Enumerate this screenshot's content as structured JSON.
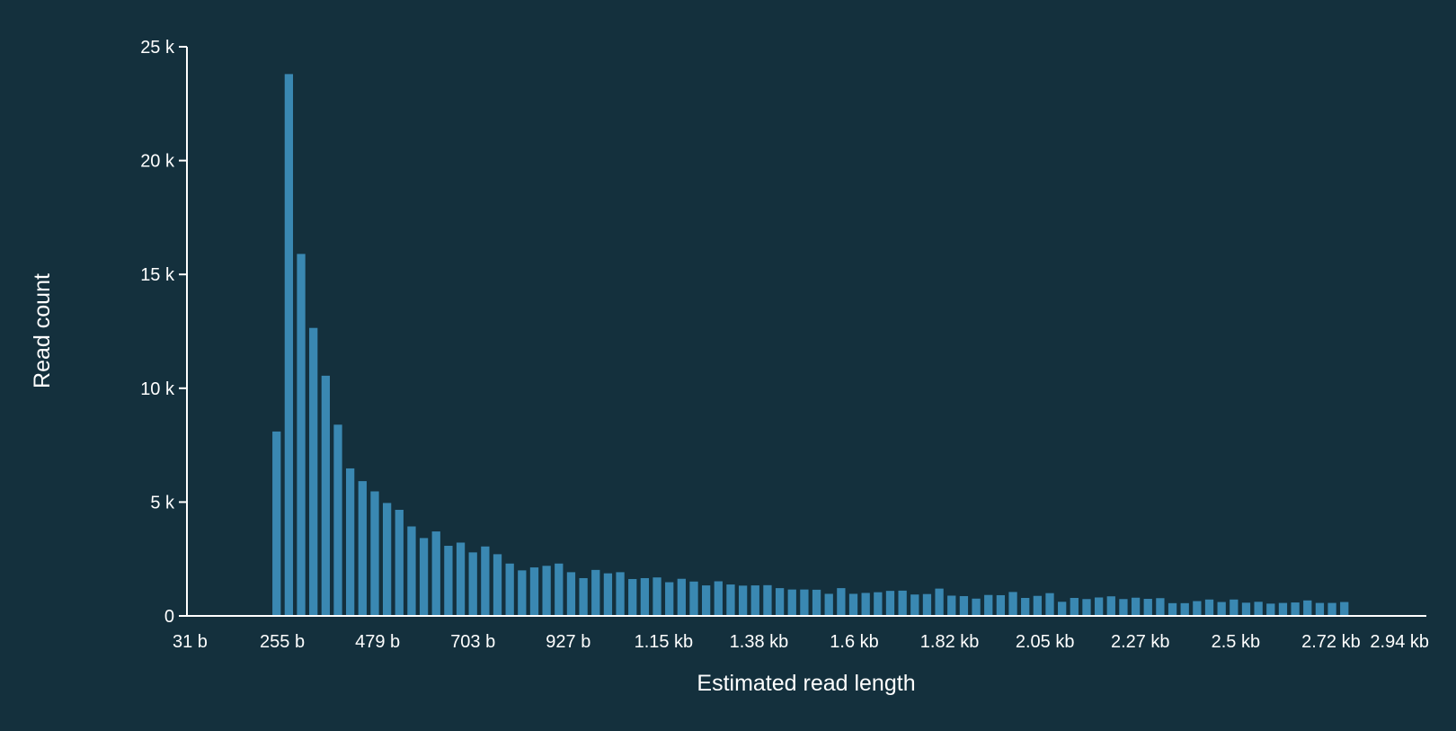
{
  "chart_data": {
    "type": "bar",
    "xlabel": "Estimated read length",
    "ylabel": "Read count",
    "x_tick_labels": [
      "31 b",
      "255 b",
      "479 b",
      "703 b",
      "927 b",
      "1.15 kb",
      "1.38 kb",
      "1.6 kb",
      "1.82 kb",
      "2.05 kb",
      "2.27 kb",
      "2.5 kb",
      "2.72 kb",
      "2.94 kb"
    ],
    "y_tick_labels": [
      "0",
      "5 k",
      "10 k",
      "15 k",
      "20 k",
      "25 k"
    ],
    "y_tick_values": [
      0,
      5000,
      10000,
      15000,
      20000,
      25000
    ],
    "x_range_bp": [
      31,
      3000
    ],
    "bin_start_bp": 231,
    "bin_width_bp": 29.4,
    "ylim": [
      0,
      25000
    ],
    "values": [
      8100,
      23800,
      15900,
      12650,
      10550,
      8400,
      6480,
      5920,
      5470,
      4960,
      4660,
      3930,
      3420,
      3710,
      3080,
      3220,
      2790,
      3050,
      2710,
      2300,
      2000,
      2130,
      2200,
      2300,
      1920,
      1660,
      2020,
      1870,
      1920,
      1620,
      1660,
      1690,
      1480,
      1630,
      1510,
      1340,
      1520,
      1380,
      1330,
      1340,
      1350,
      1220,
      1160,
      1160,
      1150,
      970,
      1220,
      970,
      1010,
      1040,
      1100,
      1110,
      940,
      960,
      1200,
      890,
      870,
      760,
      920,
      910,
      1050,
      790,
      880,
      1000,
      620,
      790,
      740,
      810,
      860,
      740,
      800,
      750,
      780,
      560,
      560,
      650,
      720,
      610,
      720,
      580,
      620,
      540,
      570,
      590,
      680,
      570,
      570,
      610
    ],
    "grid": false,
    "legend": "none",
    "colors": {
      "background": "#14303d",
      "bar": "#3a88b2",
      "axis": "#ffffff",
      "text": "#ffffff"
    }
  }
}
